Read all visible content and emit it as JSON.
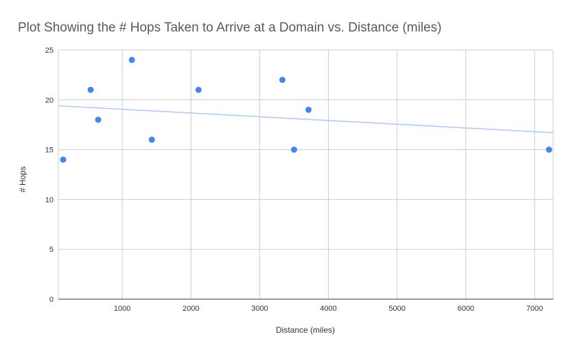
{
  "chart_data": {
    "type": "scatter",
    "title": "Plot Showing the # Hops Taken to Arrive at a Domain vs. Distance (miles)",
    "xlabel": "Distance (miles)",
    "ylabel": "# Hops",
    "xlim": [
      70,
      7270
    ],
    "ylim": [
      0,
      25
    ],
    "x_ticks": [
      1000,
      2000,
      3000,
      4000,
      5000,
      6000,
      7000
    ],
    "x_tick_labels": [
      "1000",
      "2000",
      "3000",
      "4000",
      "5000",
      "6000",
      "7000"
    ],
    "y_ticks": [
      0,
      5,
      10,
      15,
      20,
      25
    ],
    "y_tick_labels": [
      "0",
      "5",
      "10",
      "15",
      "20",
      "25"
    ],
    "grid": true,
    "legend": "none",
    "point_color": "#4285f4",
    "trendline_color": "#aecbfa",
    "series": [
      {
        "points": [
          {
            "x": 140,
            "y": 14
          },
          {
            "x": 540,
            "y": 21
          },
          {
            "x": 650,
            "y": 18
          },
          {
            "x": 1140,
            "y": 24
          },
          {
            "x": 1430,
            "y": 16
          },
          {
            "x": 2110,
            "y": 21
          },
          {
            "x": 3330,
            "y": 22
          },
          {
            "x": 3500,
            "y": 15
          },
          {
            "x": 3710,
            "y": 19
          },
          {
            "x": 7210,
            "y": 15
          }
        ]
      }
    ],
    "trendline": {
      "type": "linear",
      "x": [
        70,
        7270
      ],
      "y": [
        19.4,
        16.7
      ]
    }
  }
}
